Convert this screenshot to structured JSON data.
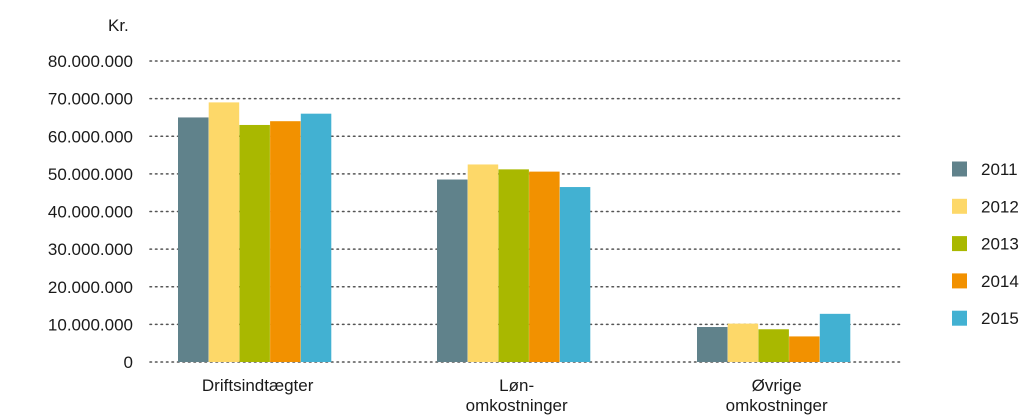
{
  "chart_data": {
    "type": "bar",
    "y_unit_label": "Kr.",
    "categories": [
      [
        "Driftsindtægter"
      ],
      [
        "Løn-",
        "omkostninger"
      ],
      [
        "Øvrige",
        "omkostninger"
      ]
    ],
    "yticks": [
      "0",
      "10.000.000",
      "20.000.000",
      "30.000.000",
      "40.000.000",
      "50.000.000",
      "60.000.000",
      "70.000.000",
      "80.000.000"
    ],
    "ylim": [
      0,
      80000000
    ],
    "grid": true,
    "legend_position": "right",
    "series": [
      {
        "name": "2011",
        "color": "#60828b",
        "values": [
          65000000,
          48500000,
          9300000
        ]
      },
      {
        "name": "2012",
        "color": "#fdd869",
        "values": [
          69000000,
          52500000,
          10200000
        ]
      },
      {
        "name": "2013",
        "color": "#a9b800",
        "values": [
          63000000,
          51200000,
          8700000
        ]
      },
      {
        "name": "2014",
        "color": "#f29100",
        "values": [
          64000000,
          50600000,
          6800000
        ]
      },
      {
        "name": "2015",
        "color": "#42b1d2",
        "values": [
          66000000,
          46500000,
          12800000
        ]
      }
    ]
  }
}
